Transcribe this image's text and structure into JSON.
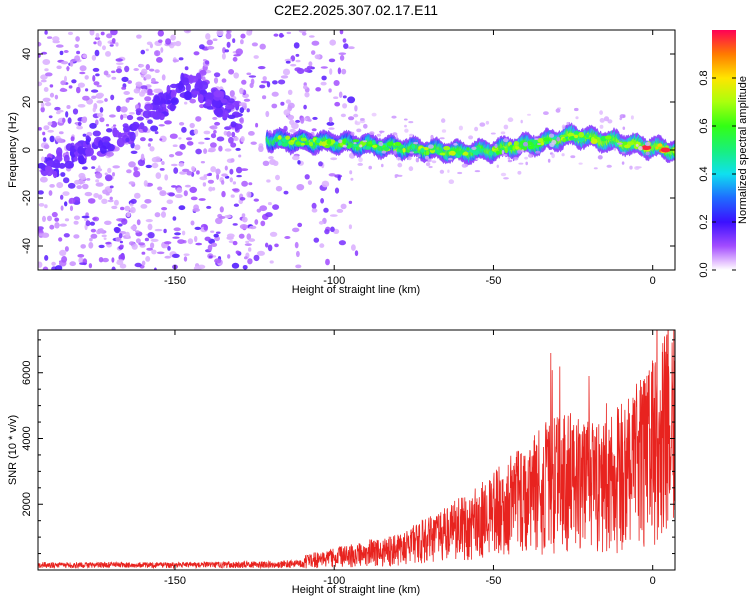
{
  "chart_data": [
    {
      "type": "heatmap",
      "title": "C2E2.2025.307.02.17.E11",
      "xlabel": "Height of straight line (km)",
      "ylabel": "Frequency (Hz)",
      "xlim": [
        -193,
        7
      ],
      "ylim": [
        -50,
        50
      ],
      "xticks": [
        -150,
        -100,
        -50,
        0
      ],
      "yticks": [
        -40,
        -20,
        0,
        20,
        40
      ],
      "colorbar": {
        "label": "Normalized spectral amplitude",
        "range": [
          0,
          1
        ],
        "ticks": [
          0.0,
          0.2,
          0.4,
          0.6,
          0.8
        ]
      },
      "ridge": {
        "description_points": [
          {
            "x": -190,
            "freq": -8
          },
          {
            "x": -165,
            "freq": 8
          },
          {
            "x": -145,
            "freq": 28
          },
          {
            "x": -120,
            "freq": 4
          },
          {
            "x": -100,
            "freq": 3
          },
          {
            "x": -80,
            "freq": 1
          },
          {
            "x": -60,
            "freq": -1
          },
          {
            "x": -50,
            "freq": 0
          },
          {
            "x": -35,
            "freq": 3
          },
          {
            "x": -25,
            "freq": 6
          },
          {
            "x": -10,
            "freq": 3
          },
          {
            "x": 0,
            "freq": 1
          },
          {
            "x": 7,
            "freq": 0
          }
        ]
      }
    },
    {
      "type": "line",
      "xlabel": "Height of straight line (km)",
      "ylabel": "SNR (10 * v/v)",
      "xlim": [
        -193,
        7
      ],
      "ylim": [
        0,
        7300
      ],
      "xticks": [
        -150,
        -100,
        -50,
        0
      ],
      "yticks": [
        2000,
        4000,
        6000
      ],
      "series": [
        {
          "name": "SNR",
          "color": "#e8231f",
          "envelope_points": [
            {
              "x": -193,
              "y": 200
            },
            {
              "x": -150,
              "y": 200
            },
            {
              "x": -120,
              "y": 230
            },
            {
              "x": -110,
              "y": 300
            },
            {
              "x": -100,
              "y": 450
            },
            {
              "x": -90,
              "y": 600
            },
            {
              "x": -80,
              "y": 750
            },
            {
              "x": -70,
              "y": 1100
            },
            {
              "x": -60,
              "y": 1500
            },
            {
              "x": -50,
              "y": 2000
            },
            {
              "x": -40,
              "y": 2600
            },
            {
              "x": -32,
              "y": 3100
            },
            {
              "x": -25,
              "y": 3200
            },
            {
              "x": -15,
              "y": 3000
            },
            {
              "x": -5,
              "y": 3800
            },
            {
              "x": 0,
              "y": 4300
            },
            {
              "x": 7,
              "y": 5200
            }
          ],
          "peaks": [
            {
              "x": -32,
              "y": 6600
            },
            {
              "x": -20,
              "y": 5900
            },
            {
              "x": 5,
              "y": 6200
            },
            {
              "x": 7,
              "y": 7200
            }
          ]
        }
      ]
    }
  ]
}
